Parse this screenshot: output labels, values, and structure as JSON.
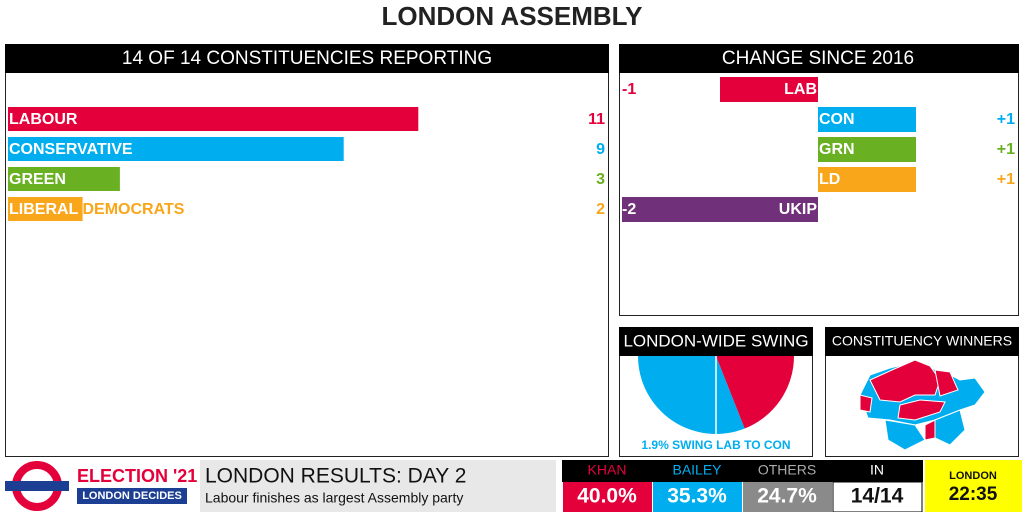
{
  "title": "LONDON ASSEMBLY",
  "chart_data": [
    {
      "type": "bar",
      "title": "14 OF 14 CONSTITUENCIES REPORTING",
      "categories": [
        "LABOUR",
        "CONSERVATIVE",
        "GREEN",
        "LIBERAL DEMOCRATS"
      ],
      "values": [
        11,
        9,
        3,
        2
      ],
      "colors": [
        "#e4003b",
        "#00aeef",
        "#6ab023",
        "#faa61a"
      ]
    },
    {
      "type": "diverging-bar",
      "title": "CHANGE SINCE 2016",
      "categories": [
        "LAB",
        "CON",
        "GRN",
        "LD",
        "UKIP"
      ],
      "values": [
        -1,
        1,
        1,
        1,
        -2
      ],
      "value_labels": [
        "-1",
        "+1",
        "+1",
        "+1",
        "-2"
      ],
      "colors": [
        "#e4003b",
        "#00aeef",
        "#6ab023",
        "#faa61a",
        "#70307a"
      ]
    },
    {
      "type": "pie",
      "title": "LONDON-WIDE SWING",
      "values": [
        62,
        38
      ],
      "colors": [
        "#00aeef",
        "#e4003b"
      ],
      "caption": "1.9% SWING LAB TO CON"
    }
  ],
  "map": {
    "title": "CONSTITUENCY WINNERS"
  },
  "ticker": {
    "brand": "ELECTION '21",
    "brand_sub": "LONDON DECIDES",
    "headline": "LONDON RESULTS: DAY 2",
    "subline": "Labour finishes as largest Assembly party",
    "results": [
      {
        "name": "KHAN",
        "value": "40.0%"
      },
      {
        "name": "BAILEY",
        "value": "35.3%"
      },
      {
        "name": "OTHERS",
        "value": "24.7%"
      },
      {
        "name": "IN",
        "value": "14/14"
      }
    ],
    "place": "LONDON",
    "time": "22:35"
  }
}
